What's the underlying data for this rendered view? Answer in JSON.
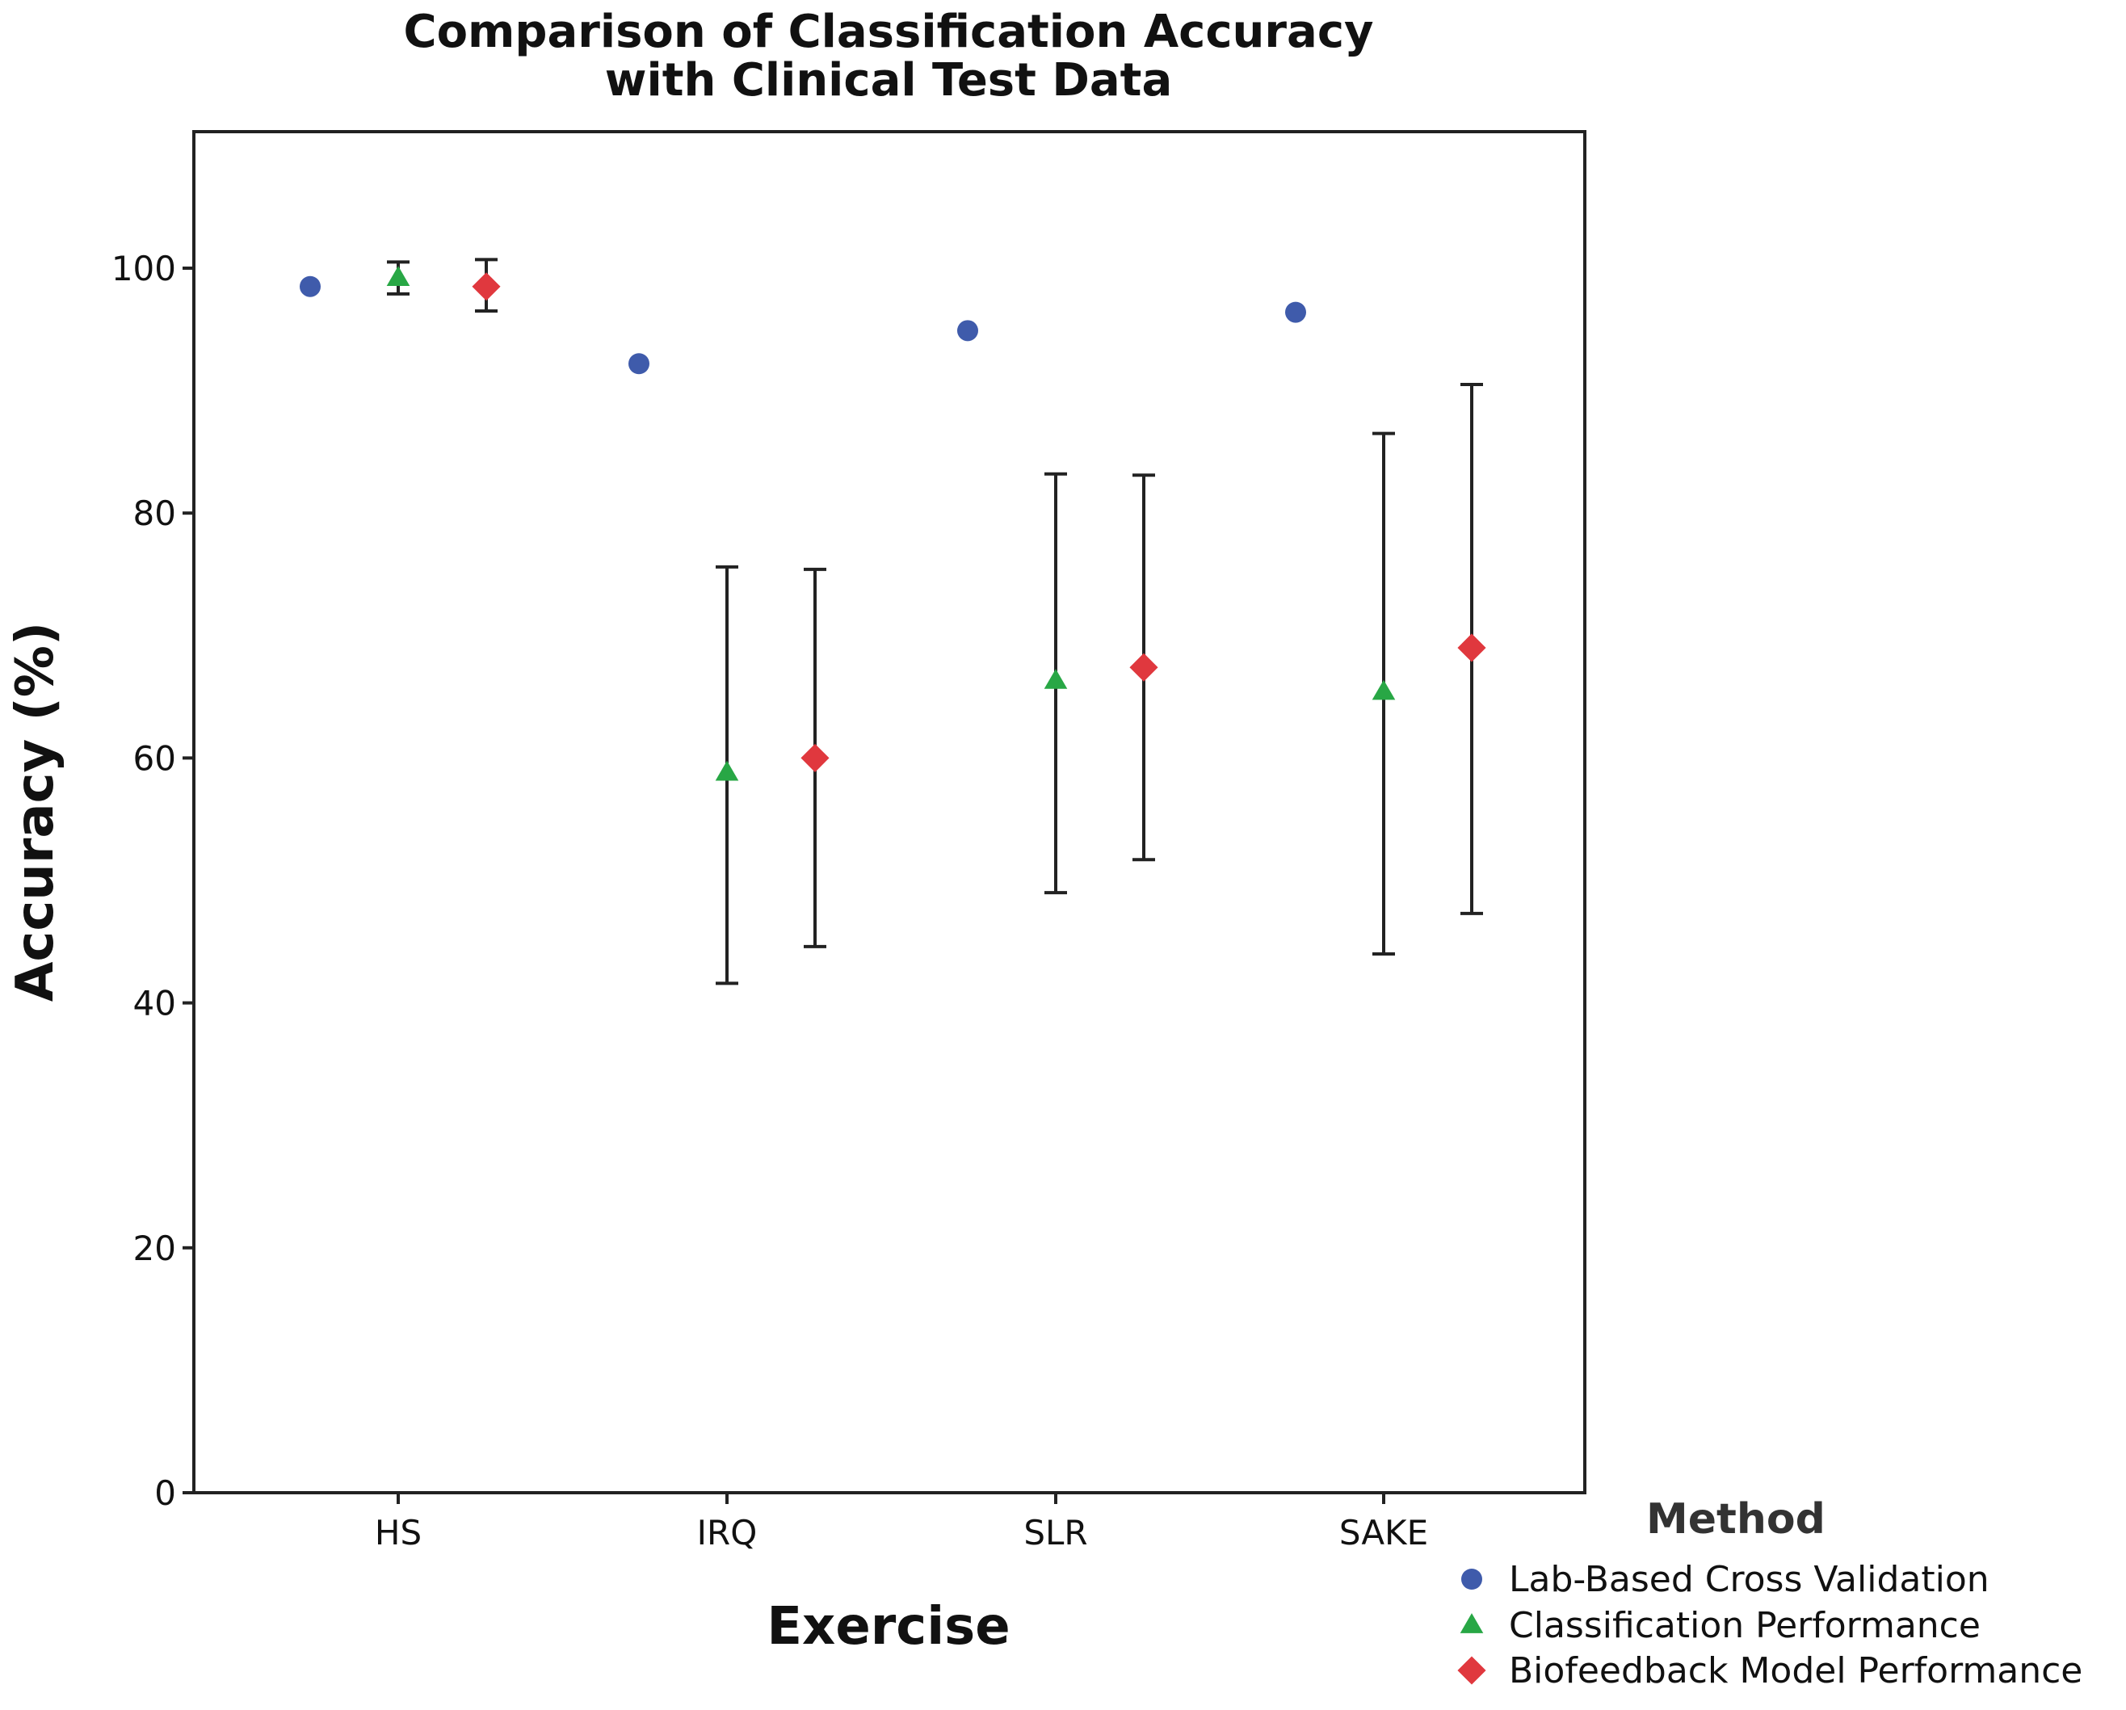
{
  "chart_data": {
    "type": "scatter",
    "title": [
      "Comparison of Classification Accuracy",
      "with Clinical Test Data"
    ],
    "xlabel": "Exercise",
    "ylabel": "Accuracy (%)",
    "categories": [
      "HS",
      "IRQ",
      "SLR",
      "SAKE"
    ],
    "ylim": [
      0,
      110
    ],
    "yticks": [
      0,
      20,
      40,
      60,
      80,
      100
    ],
    "grid": false,
    "legend": {
      "title": "Method",
      "position": "bottom-right"
    },
    "series": [
      {
        "name": "Lab-Based Cross Validation",
        "marker": "circle",
        "color": "#3f5bab",
        "offset": -1,
        "values": [
          98.5,
          92.2,
          94.9,
          96.4
        ],
        "err_low": [
          null,
          null,
          null,
          null
        ],
        "err_high": [
          null,
          null,
          null,
          null
        ]
      },
      {
        "name": "Classification Performance",
        "marker": "triangle",
        "color": "#28a745",
        "offset": 0,
        "values": [
          99.2,
          58.8,
          66.3,
          65.4
        ],
        "err_low": [
          97.9,
          41.6,
          49.0,
          44.0
        ],
        "err_high": [
          100.5,
          75.6,
          83.2,
          86.5
        ]
      },
      {
        "name": "Biofeedback Model Performance",
        "marker": "diamond",
        "color": "#e0383e",
        "offset": 1,
        "values": [
          98.5,
          60.0,
          67.4,
          69.0
        ],
        "err_low": [
          96.5,
          44.6,
          51.7,
          47.3
        ],
        "err_high": [
          100.7,
          75.4,
          83.1,
          90.5
        ]
      }
    ]
  }
}
